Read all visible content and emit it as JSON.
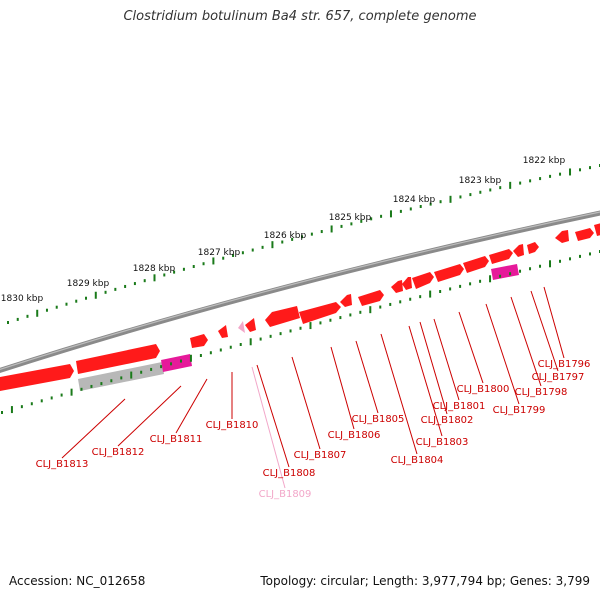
{
  "title": "Clostridium botulinum Ba4 str. 657, complete genome",
  "accession": "Accession: NC_012658",
  "topology": "Topology: circular; Length: 3,977,794 bp; Genes: 3,799",
  "colors": {
    "gene": "#ff1a1a",
    "gene_dark": "#c80000",
    "gene_light": "#ff8080",
    "pseudogene": "#f2a7c9",
    "rna": "#e61a9a",
    "cds_grey": "#b8b8b8",
    "backbone": "#7a7a7a",
    "tick": "#1a7a1a",
    "label": "#cc0000"
  },
  "axis": {
    "ticks": [
      "1822 kbp",
      "1823 kbp",
      "1824 kbp",
      "1825 kbp",
      "1826 kbp",
      "1827 kbp",
      "1828 kbp",
      "1829 kbp",
      "1830 kbp"
    ]
  },
  "genes": [
    {
      "label": "CLJ_B1796"
    },
    {
      "label": "CLJ_B1797"
    },
    {
      "label": "CLJ_B1798"
    },
    {
      "label": "CLJ_B1799"
    },
    {
      "label": "CLJ_B1800"
    },
    {
      "label": "CLJ_B1801"
    },
    {
      "label": "CLJ_B1802"
    },
    {
      "label": "CLJ_B1803"
    },
    {
      "label": "CLJ_B1804"
    },
    {
      "label": "CLJ_B1805"
    },
    {
      "label": "CLJ_B1806"
    },
    {
      "label": "CLJ_B1807"
    },
    {
      "label": "CLJ_B1808"
    },
    {
      "label": "CLJ_B1809"
    },
    {
      "label": "CLJ_B1810"
    },
    {
      "label": "CLJ_B1811"
    },
    {
      "label": "CLJ_B1812"
    },
    {
      "label": "CLJ_B1813"
    }
  ]
}
